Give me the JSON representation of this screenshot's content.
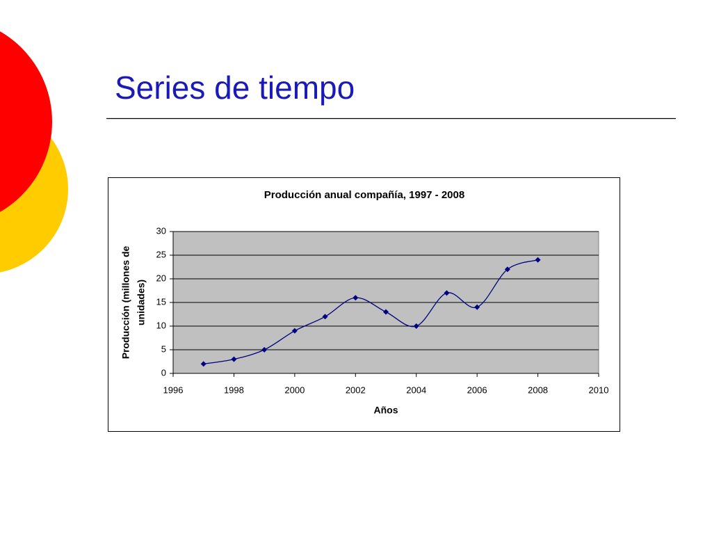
{
  "slide_title": "Series de tiempo",
  "chart_data": {
    "type": "line",
    "title": "Producción anual compañía, 1997 - 2008",
    "xlabel": "Años",
    "ylabel": [
      "Producción (millones de",
      "unidades)"
    ],
    "x": [
      1997,
      1998,
      1999,
      2000,
      2001,
      2002,
      2003,
      2004,
      2005,
      2006,
      2007,
      2008
    ],
    "values": [
      2,
      3,
      5,
      9,
      12,
      16,
      13,
      10,
      17,
      14,
      22,
      24
    ],
    "color": "#000080",
    "xlim": [
      1996,
      2010
    ],
    "xticks": [
      1996,
      1998,
      2000,
      2002,
      2004,
      2006,
      2008,
      2010
    ],
    "ylim": [
      0,
      30
    ],
    "yticks": [
      0,
      5,
      10,
      15,
      20,
      25,
      30
    ],
    "grid": true
  }
}
